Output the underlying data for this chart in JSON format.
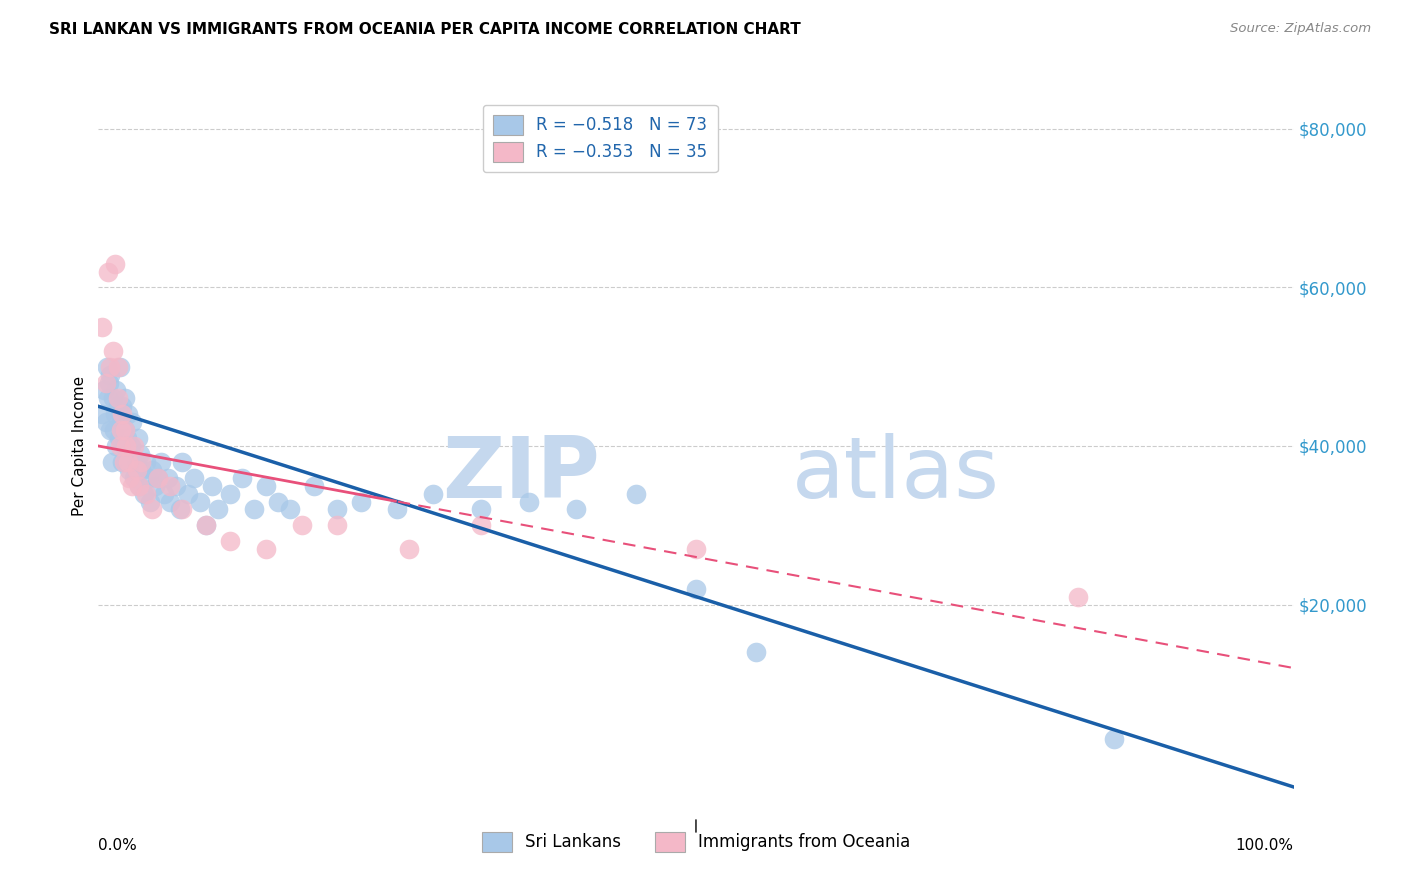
{
  "title": "SRI LANKAN VS IMMIGRANTS FROM OCEANIA PER CAPITA INCOME CORRELATION CHART",
  "source": "Source: ZipAtlas.com",
  "ylabel": "Per Capita Income",
  "yticks": [
    0,
    20000,
    40000,
    60000,
    80000
  ],
  "ytick_labels": [
    "",
    "$20,000",
    "$40,000",
    "$60,000",
    "$80,000"
  ],
  "xmin": 0.0,
  "xmax": 1.0,
  "ymin": -5000,
  "ymax": 85000,
  "blue_color": "#a8c8e8",
  "pink_color": "#f4b8c8",
  "blue_line_color": "#1a5fa8",
  "pink_line_color": "#e8507a",
  "legend_label_blue": "Sri Lankans",
  "legend_label_pink": "Immigrants from Oceania",
  "watermark_zip": "ZIP",
  "watermark_atlas": "atlas",
  "blue_intercept": 45000,
  "blue_slope": -48000,
  "pink_intercept": 40000,
  "pink_slope": -28000,
  "blue_points_x": [
    0.003,
    0.005,
    0.006,
    0.007,
    0.008,
    0.009,
    0.01,
    0.01,
    0.011,
    0.012,
    0.013,
    0.014,
    0.015,
    0.015,
    0.016,
    0.017,
    0.018,
    0.018,
    0.019,
    0.02,
    0.02,
    0.021,
    0.022,
    0.022,
    0.023,
    0.024,
    0.025,
    0.026,
    0.027,
    0.028,
    0.03,
    0.032,
    0.033,
    0.034,
    0.035,
    0.036,
    0.038,
    0.04,
    0.042,
    0.043,
    0.045,
    0.047,
    0.05,
    0.052,
    0.055,
    0.058,
    0.06,
    0.065,
    0.068,
    0.07,
    0.075,
    0.08,
    0.085,
    0.09,
    0.095,
    0.1,
    0.11,
    0.12,
    0.13,
    0.14,
    0.15,
    0.16,
    0.18,
    0.2,
    0.22,
    0.25,
    0.28,
    0.32,
    0.36,
    0.4,
    0.45,
    0.5,
    0.55,
    0.85
  ],
  "blue_points_y": [
    44000,
    47000,
    43000,
    50000,
    46000,
    48000,
    42000,
    49000,
    38000,
    46000,
    42000,
    44000,
    40000,
    47000,
    45000,
    41000,
    44000,
    50000,
    43000,
    38000,
    45000,
    40000,
    42000,
    46000,
    38000,
    41000,
    44000,
    37000,
    40000,
    43000,
    36000,
    38000,
    41000,
    35000,
    39000,
    37000,
    34000,
    38000,
    36000,
    33000,
    37000,
    35000,
    36000,
    38000,
    34000,
    36000,
    33000,
    35000,
    32000,
    38000,
    34000,
    36000,
    33000,
    30000,
    35000,
    32000,
    34000,
    36000,
    32000,
    35000,
    33000,
    32000,
    35000,
    32000,
    33000,
    32000,
    34000,
    32000,
    33000,
    32000,
    34000,
    22000,
    14000,
    3000
  ],
  "pink_points_x": [
    0.003,
    0.006,
    0.008,
    0.01,
    0.012,
    0.014,
    0.016,
    0.016,
    0.018,
    0.019,
    0.02,
    0.021,
    0.022,
    0.023,
    0.025,
    0.026,
    0.028,
    0.03,
    0.032,
    0.034,
    0.036,
    0.04,
    0.045,
    0.05,
    0.06,
    0.07,
    0.09,
    0.11,
    0.14,
    0.17,
    0.2,
    0.26,
    0.32,
    0.5,
    0.82
  ],
  "pink_points_y": [
    55000,
    48000,
    62000,
    50000,
    52000,
    63000,
    46000,
    50000,
    40000,
    42000,
    44000,
    38000,
    42000,
    40000,
    38000,
    36000,
    35000,
    40000,
    37000,
    35000,
    38000,
    34000,
    32000,
    36000,
    35000,
    32000,
    30000,
    28000,
    27000,
    30000,
    30000,
    27000,
    30000,
    27000,
    21000
  ]
}
